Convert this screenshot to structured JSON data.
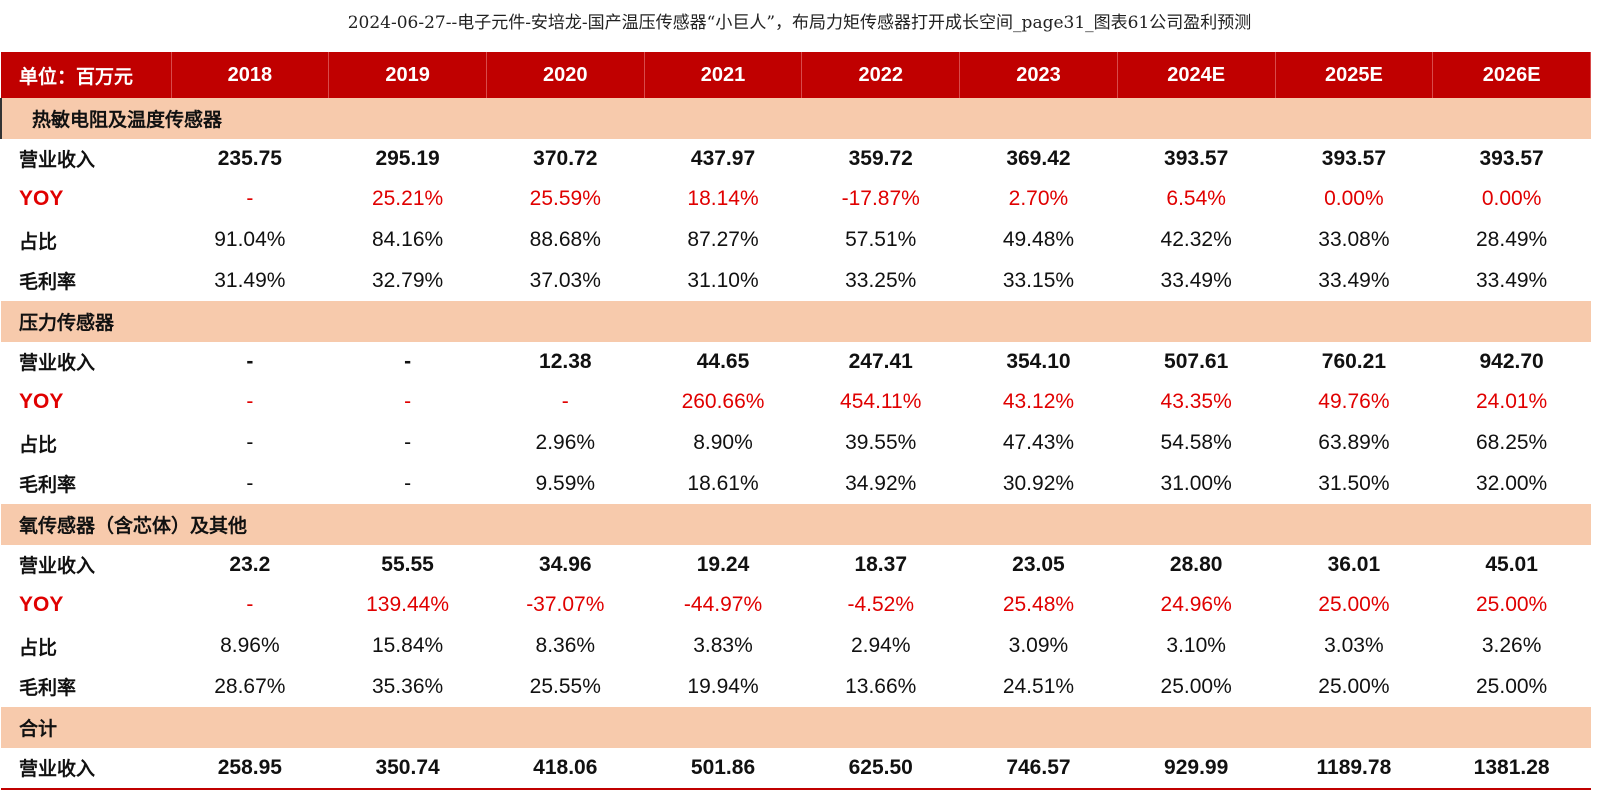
{
  "title": "2024-06-27--电子元件-安培龙-国产温压传感器“小巨人”，布局力矩传感器打开成长空间_page31_图表61公司盈利预测",
  "colors": {
    "header_bg": "#c00000",
    "section_bg": "#f7caac",
    "yoy_red": "#e00000"
  },
  "table": {
    "unit_label": "单位：百万元",
    "years": [
      "2018",
      "2019",
      "2020",
      "2021",
      "2022",
      "2023",
      "2024E",
      "2025E",
      "2026E"
    ],
    "sections": [
      {
        "name": "热敏电阻及温度传感器",
        "rows": [
          {
            "label": "营业收入",
            "values": [
              "235.75",
              "295.19",
              "370.72",
              "437.97",
              "359.72",
              "369.42",
              "393.57",
              "393.57",
              "393.57"
            ]
          },
          {
            "label": "YOY",
            "values": [
              "-",
              "25.21%",
              "25.59%",
              "18.14%",
              "-17.87%",
              "2.70%",
              "6.54%",
              "0.00%",
              "0.00%"
            ]
          },
          {
            "label": "占比",
            "values": [
              "91.04%",
              "84.16%",
              "88.68%",
              "87.27%",
              "57.51%",
              "49.48%",
              "42.32%",
              "33.08%",
              "28.49%"
            ]
          },
          {
            "label": "毛利率",
            "values": [
              "31.49%",
              "32.79%",
              "37.03%",
              "31.10%",
              "33.25%",
              "33.15%",
              "33.49%",
              "33.49%",
              "33.49%"
            ]
          }
        ]
      },
      {
        "name": "压力传感器",
        "rows": [
          {
            "label": "营业收入",
            "values": [
              "-",
              "-",
              "12.38",
              "44.65",
              "247.41",
              "354.10",
              "507.61",
              "760.21",
              "942.70"
            ]
          },
          {
            "label": "YOY",
            "values": [
              "-",
              "-",
              "-",
              "260.66%",
              "454.11%",
              "43.12%",
              "43.35%",
              "49.76%",
              "24.01%"
            ]
          },
          {
            "label": "占比",
            "values": [
              "-",
              "-",
              "2.96%",
              "8.90%",
              "39.55%",
              "47.43%",
              "54.58%",
              "63.89%",
              "68.25%"
            ]
          },
          {
            "label": "毛利率",
            "values": [
              "-",
              "-",
              "9.59%",
              "18.61%",
              "34.92%",
              "30.92%",
              "31.00%",
              "31.50%",
              "32.00%"
            ]
          }
        ]
      },
      {
        "name": "氧传感器（含芯体）及其他",
        "rows": [
          {
            "label": "营业收入",
            "values": [
              "23.2",
              "55.55",
              "34.96",
              "19.24",
              "18.37",
              "23.05",
              "28.80",
              "36.01",
              "45.01"
            ]
          },
          {
            "label": "YOY",
            "values": [
              "-",
              "139.44%",
              "-37.07%",
              "-44.97%",
              "-4.52%",
              "25.48%",
              "24.96%",
              "25.00%",
              "25.00%"
            ]
          },
          {
            "label": "占比",
            "values": [
              "8.96%",
              "15.84%",
              "8.36%",
              "3.83%",
              "2.94%",
              "3.09%",
              "3.10%",
              "3.03%",
              "3.26%"
            ]
          },
          {
            "label": "毛利率",
            "values": [
              "28.67%",
              "35.36%",
              "25.55%",
              "19.94%",
              "13.66%",
              "24.51%",
              "25.00%",
              "25.00%",
              "25.00%"
            ]
          }
        ]
      },
      {
        "name": "合计",
        "rows": [
          {
            "label": "营业收入",
            "values": [
              "258.95",
              "350.74",
              "418.06",
              "501.86",
              "625.50",
              "746.57",
              "929.99",
              "1189.78",
              "1381.28"
            ]
          }
        ]
      }
    ]
  }
}
